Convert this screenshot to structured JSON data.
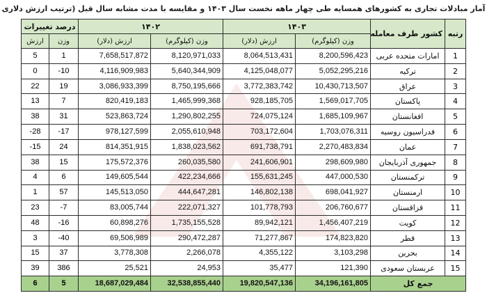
{
  "title": "آمار مبادلات تجاری به کشورهای همسایه طی چهار ماهه نخست سال ۱۴۰۳ و مقایسه با مدت مشابه سال قبل (ترتیب ارزش دلاری سال ۱۴۰۳)",
  "headers": {
    "rank": "رتبه",
    "country": "کشور طرف معامله",
    "year_1403": "۱۴۰۳",
    "year_1402": "۱۴۰۲",
    "change": "درصد تغییرات",
    "weight_kg": "وزن (کیلوگرم)",
    "value_usd": "ارزش (دلار)",
    "weight": "وزن",
    "value": "ارزش"
  },
  "rows": [
    {
      "rank": "1",
      "country": "امارات متحده عربی",
      "w1403": "8,200,596,423",
      "v1403": "8,064,513,431",
      "w1402": "8,120,971,033",
      "v1402": "7,658,517,872",
      "pw": "1",
      "pv": "5"
    },
    {
      "rank": "2",
      "country": "ترکیه",
      "w1403": "5,052,295,216",
      "v1403": "4,125,048,077",
      "w1402": "5,640,344,909",
      "v1402": "4,116,909,983",
      "pw": "-10",
      "pv": "0"
    },
    {
      "rank": "3",
      "country": "عراق",
      "w1403": "10,430,713,507",
      "v1403": "3,772,383,742",
      "w1402": "8,750,195,666",
      "v1402": "3,086,933,399",
      "pw": "19",
      "pv": "22"
    },
    {
      "rank": "4",
      "country": "پاکستان",
      "w1403": "1,569,017,705",
      "v1403": "928,185,705",
      "w1402": "1,465,999,368",
      "v1402": "820,419,183",
      "pw": "7",
      "pv": "13"
    },
    {
      "rank": "5",
      "country": "افغانستان",
      "w1403": "1,685,109,967",
      "v1403": "724,075,124",
      "w1402": "1,290,802,255",
      "v1402": "523,863,724",
      "pw": "31",
      "pv": "38"
    },
    {
      "rank": "6",
      "country": "فدراسیون روسیه",
      "w1403": "1,703,076,311",
      "v1403": "703,172,604",
      "w1402": "2,055,610,948",
      "v1402": "978,127,599",
      "pw": "-17",
      "pv": "-28"
    },
    {
      "rank": "7",
      "country": "عمان",
      "w1403": "2,270,483,834",
      "v1403": "691,738,791",
      "w1402": "1,838,023,562",
      "v1402": "814,351,915",
      "pw": "24",
      "pv": "-15"
    },
    {
      "rank": "8",
      "country": "جمهوری آذربایجان",
      "w1403": "298,609,980",
      "v1403": "241,606,901",
      "w1402": "260,035,580",
      "v1402": "175,572,376",
      "pw": "15",
      "pv": "38"
    },
    {
      "rank": "9",
      "country": "ترکمنستان",
      "w1403": "447,000,530",
      "v1403": "155,631,245",
      "w1402": "422,234,666",
      "v1402": "149,605,544",
      "pw": "6",
      "pv": "4"
    },
    {
      "rank": "10",
      "country": "ارمنستان",
      "w1403": "698,041,927",
      "v1403": "146,802,138",
      "w1402": "444,647,281",
      "v1402": "145,513,050",
      "pw": "57",
      "pv": "1"
    },
    {
      "rank": "11",
      "country": "قزاقستان",
      "w1403": "206,760,677",
      "v1403": "101,778,793",
      "w1402": "222,071,327",
      "v1402": "83,005,744",
      "pw": "-7",
      "pv": "23"
    },
    {
      "rank": "12",
      "country": "کویت",
      "w1403": "1,456,407,219",
      "v1403": "89,942,121",
      "w1402": "1,735,155,528",
      "v1402": "60,898,276",
      "pw": "-16",
      "pv": "48"
    },
    {
      "rank": "13",
      "country": "قطر",
      "w1403": "174,823,820",
      "v1403": "71,277,867",
      "w1402": "290,472,287",
      "v1402": "69,506,989",
      "pw": "-40",
      "pv": "3"
    },
    {
      "rank": "14",
      "country": "بحرین",
      "w1403": "3,103,298",
      "v1403": "4,355,122",
      "w1402": "2,266,078",
      "v1402": "3,778,308",
      "pw": "37",
      "pv": "15"
    },
    {
      "rank": "15",
      "country": "عربستان سعودی",
      "w1403": "121,390",
      "v1403": "35,477",
      "w1402": "24,953",
      "v1402": "25,521",
      "pw": "386",
      "pv": "39"
    }
  ],
  "total": {
    "label": "جمع کل",
    "w1403": "34,196,161,805",
    "v1403": "19,820,547,136",
    "w1402": "32,538,855,440",
    "v1402": "18,687,029,484",
    "pw": "5",
    "pv": "6"
  },
  "colors": {
    "header_bg": "#d6e8c9",
    "total_bg": "#a9d18e",
    "border": "#2b2b2b"
  }
}
